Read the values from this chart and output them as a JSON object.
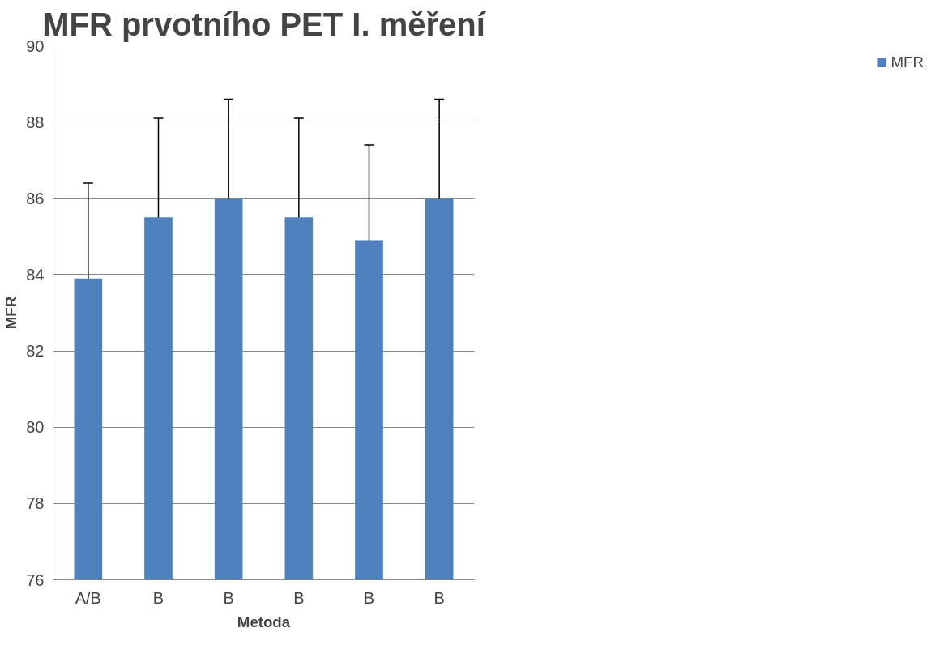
{
  "chart_data": {
    "type": "bar",
    "title": "MFR prvotního PET I. měření",
    "xlabel": "Metoda",
    "ylabel": "MFR",
    "categories": [
      "A/B",
      "B",
      "B",
      "B",
      "B",
      "B"
    ],
    "series": [
      {
        "name": "MFR",
        "color": "#4f81bd",
        "values": [
          83.9,
          85.5,
          86.0,
          85.5,
          84.9,
          86.0
        ],
        "errors": [
          2.5,
          2.6,
          2.6,
          2.6,
          2.5,
          2.6
        ]
      }
    ],
    "ylim": [
      76,
      90
    ],
    "yticks": [
      76,
      78,
      80,
      82,
      84,
      86,
      88,
      90
    ],
    "grid": "y",
    "legend": "right"
  }
}
